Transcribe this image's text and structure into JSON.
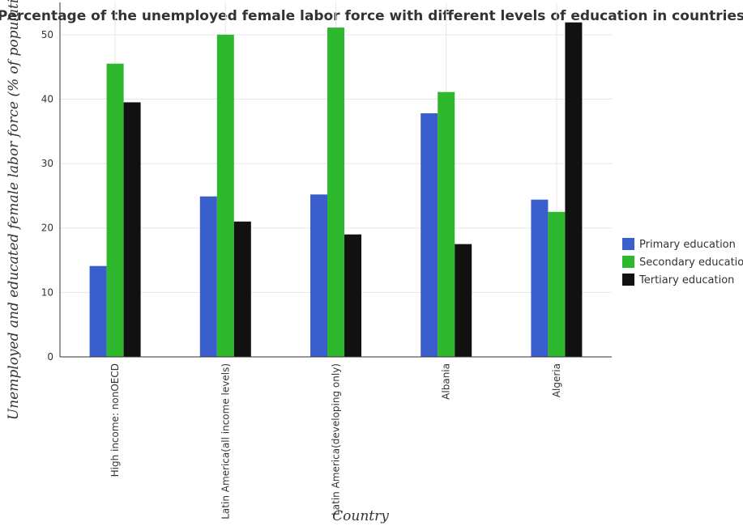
{
  "chart_data": {
    "type": "bar",
    "title": "Percentage of the unemployed female labor force with different levels of education in countries",
    "xlabel": "Country",
    "ylabel": "Unemployed and educated female labor force (% of population)",
    "categories": [
      "High income: nonOECD",
      "Latin America(all income levels)",
      "Latin America(developing only)",
      "Albania",
      "Algeria"
    ],
    "series": [
      {
        "name": "Primary education",
        "color": "#3a5fcd",
        "values": [
          14.1,
          24.9,
          25.2,
          37.8,
          24.4
        ]
      },
      {
        "name": "Secondary education",
        "color": "#2eb82e",
        "values": [
          45.5,
          50.0,
          51.1,
          41.1,
          22.5
        ]
      },
      {
        "name": "Tertiary education",
        "color": "#111111",
        "values": [
          39.5,
          21.0,
          19.0,
          17.5,
          51.9
        ]
      }
    ],
    "ylim": [
      0,
      55
    ],
    "yticks": [
      0,
      10,
      20,
      30,
      40,
      50
    ],
    "grid": true,
    "legend_position": "right"
  }
}
